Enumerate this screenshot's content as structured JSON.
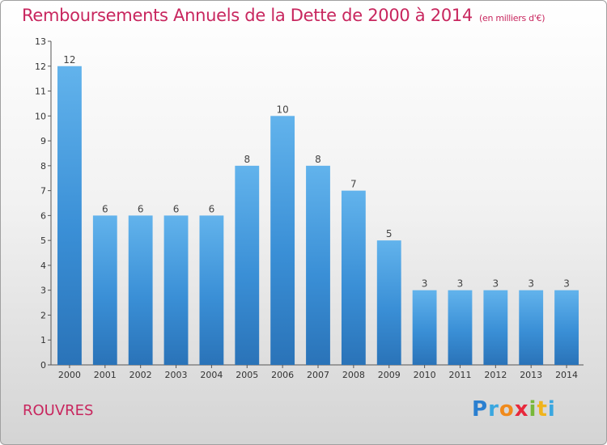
{
  "chart_data": {
    "type": "bar",
    "title": "Remboursements Annuels de la Dette de 2000 à 2014",
    "subtitle": "(en milliers d'€)",
    "categories": [
      "2000",
      "2001",
      "2002",
      "2003",
      "2004",
      "2005",
      "2006",
      "2007",
      "2008",
      "2009",
      "2010",
      "2011",
      "2012",
      "2013",
      "2014"
    ],
    "values": [
      12,
      6,
      6,
      6,
      6,
      8,
      10,
      8,
      7,
      5,
      3,
      3,
      3,
      3,
      3
    ],
    "ylim": [
      0,
      13
    ],
    "yticks": [
      0,
      1,
      2,
      3,
      4,
      5,
      6,
      7,
      8,
      9,
      10,
      11,
      12,
      13
    ],
    "grid": false,
    "bar_color": "#3a8fd6",
    "bar_color_light": "#62b3ec",
    "bar_color_dark": "#2a73b8"
  },
  "footer": {
    "commune": "ROUVRES",
    "brand_letters": [
      {
        "char": "P",
        "color": "#2a7fd0"
      },
      {
        "char": "r",
        "color": "#3aa7e0"
      },
      {
        "char": "o",
        "color": "#f08a1c"
      },
      {
        "char": "x",
        "color": "#e8283c"
      },
      {
        "char": "i",
        "color": "#78b83a"
      },
      {
        "char": "t",
        "color": "#f0b41c"
      },
      {
        "char": "i",
        "color": "#3aa7e0"
      }
    ]
  }
}
